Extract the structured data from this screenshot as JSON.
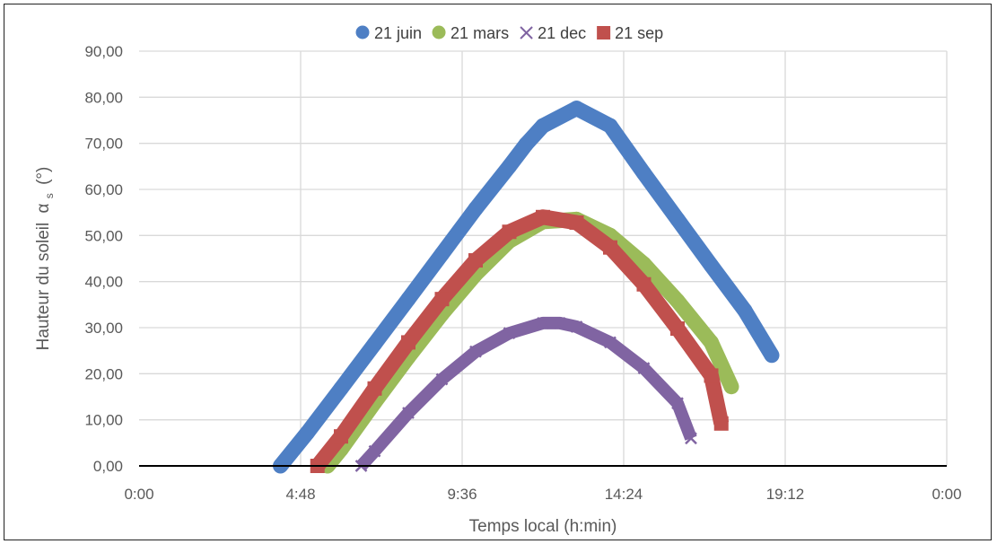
{
  "chart_data": {
    "type": "line",
    "title": "",
    "xlabel": "Temps local (h:min)",
    "ylabel": "Hauteur du soleil",
    "ylabel_symbol": "α",
    "ylabel_subscript": "s",
    "ylabel_unit": "(°)",
    "x_unit": "hours",
    "xlim": [
      0,
      24
    ],
    "ylim": [
      0,
      90
    ],
    "x_ticks": [
      {
        "value": 0,
        "label": "0:00"
      },
      {
        "value": 4.8,
        "label": "4:48"
      },
      {
        "value": 9.6,
        "label": "9:36"
      },
      {
        "value": 14.4,
        "label": "14:24"
      },
      {
        "value": 19.2,
        "label": "19:12"
      },
      {
        "value": 24,
        "label": "0:00"
      }
    ],
    "y_ticks": [
      {
        "value": 0,
        "label": "0,00"
      },
      {
        "value": 10,
        "label": "10,00"
      },
      {
        "value": 20,
        "label": "20,00"
      },
      {
        "value": 30,
        "label": "30,00"
      },
      {
        "value": 40,
        "label": "40,00"
      },
      {
        "value": 50,
        "label": "50,00"
      },
      {
        "value": 60,
        "label": "60,00"
      },
      {
        "value": 70,
        "label": "70,00"
      },
      {
        "value": 80,
        "label": "80,00"
      },
      {
        "value": 90,
        "label": "90,00"
      }
    ],
    "grid": true,
    "legend_position": "top",
    "series": [
      {
        "name": "21 juin",
        "marker": "circle",
        "color": "#4e7fc4",
        "x": [
          4.2,
          5.0,
          6.0,
          7.0,
          8.0,
          9.0,
          10.0,
          11.0,
          11.5,
          12.0,
          13.0,
          14.0,
          15.0,
          16.0,
          17.0,
          18.0,
          18.8
        ],
        "values": [
          0,
          7.2,
          16.8,
          26.5,
          36.2,
          46.0,
          55.8,
          65.0,
          69.8,
          73.8,
          77.6,
          73.8,
          63.5,
          53.5,
          43.5,
          33.7,
          24.0
        ]
      },
      {
        "name": "21 mars",
        "marker": "circle",
        "color": "#9bbb59",
        "x": [
          5.6,
          6.0,
          7.0,
          8.0,
          9.0,
          10.0,
          11.0,
          12.0,
          13.0,
          14.0,
          15.0,
          16.0,
          17.0,
          17.6
        ],
        "values": [
          0,
          3.6,
          13.8,
          23.6,
          33.0,
          41.6,
          48.8,
          53.0,
          53.5,
          50.0,
          43.8,
          35.8,
          26.8,
          17.2
        ]
      },
      {
        "name": "21 dec",
        "marker": "x",
        "color": "#8064a2",
        "x": [
          6.6,
          7.0,
          8.0,
          9.0,
          10.0,
          11.0,
          12.0,
          12.5,
          13.0,
          14.0,
          15.0,
          16.0,
          16.4
        ],
        "values": [
          0,
          3.2,
          11.5,
          18.8,
          24.8,
          28.8,
          31.0,
          31.0,
          30.2,
          26.8,
          21.2,
          13.6,
          6.0
        ]
      },
      {
        "name": "21 sep",
        "marker": "square",
        "color": "#c0504d",
        "x": [
          5.3,
          6.0,
          7.0,
          8.0,
          9.0,
          10.0,
          11.0,
          12.0,
          13.0,
          14.0,
          15.0,
          16.0,
          17.0,
          17.3
        ],
        "values": [
          0,
          6.4,
          16.8,
          26.8,
          36.2,
          44.6,
          50.8,
          54.0,
          52.8,
          47.4,
          39.4,
          29.8,
          19.6,
          9.2
        ]
      }
    ]
  }
}
